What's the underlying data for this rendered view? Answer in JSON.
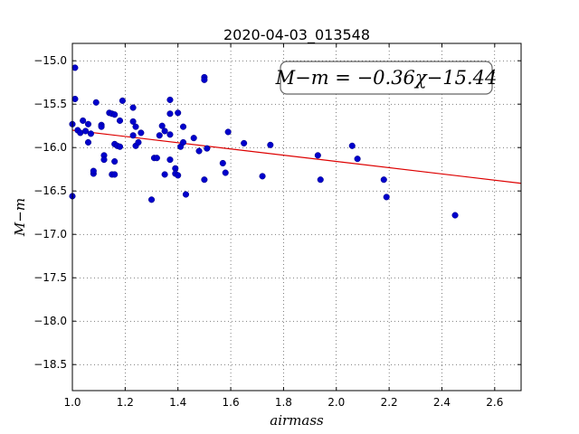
{
  "chart_data": {
    "type": "scatter",
    "title": "2020-04-03_013548",
    "xlabel": "airmass",
    "ylabel": "M−m",
    "xlim": [
      1.0,
      2.7
    ],
    "ylim": [
      -18.8,
      -14.8
    ],
    "y_inverted": true,
    "grid": true,
    "xticks": [
      1.0,
      1.2,
      1.4,
      1.6,
      1.8,
      2.0,
      2.2,
      2.4,
      2.6
    ],
    "xtick_labels": [
      "1.0",
      "1.2",
      "1.4",
      "1.6",
      "1.8",
      "2.0",
      "2.2",
      "2.4",
      "2.6"
    ],
    "yticks": [
      -15.0,
      -15.5,
      -16.0,
      -16.5,
      -17.0,
      -17.5,
      -18.0,
      -18.5
    ],
    "ytick_labels": [
      "−15.0",
      "−15.5",
      "−16.0",
      "−16.5",
      "−17.0",
      "−17.5",
      "−18.0",
      "−18.5"
    ],
    "annotation": "M−m = −0.36χ−15.44",
    "point_color": "#0000cc",
    "fit_color": "#dd0000",
    "fit": {
      "slope": -0.36,
      "intercept": -15.44
    },
    "points": [
      [
        1.01,
        -15.08
      ],
      [
        1.01,
        -15.44
      ],
      [
        1.0,
        -15.73
      ],
      [
        1.0,
        -16.56
      ],
      [
        1.02,
        -15.8
      ],
      [
        1.03,
        -15.83
      ],
      [
        1.04,
        -15.69
      ],
      [
        1.05,
        -15.81
      ],
      [
        1.06,
        -15.73
      ],
      [
        1.06,
        -15.94
      ],
      [
        1.07,
        -15.84
      ],
      [
        1.08,
        -16.3
      ],
      [
        1.08,
        -16.27
      ],
      [
        1.09,
        -15.48
      ],
      [
        1.11,
        -15.74
      ],
      [
        1.11,
        -15.76
      ],
      [
        1.12,
        -16.09
      ],
      [
        1.12,
        -16.14
      ],
      [
        1.14,
        -15.6
      ],
      [
        1.15,
        -15.61
      ],
      [
        1.15,
        -16.31
      ],
      [
        1.16,
        -16.31
      ],
      [
        1.16,
        -15.62
      ],
      [
        1.16,
        -16.16
      ],
      [
        1.16,
        -15.96
      ],
      [
        1.17,
        -15.98
      ],
      [
        1.18,
        -15.99
      ],
      [
        1.18,
        -15.69
      ],
      [
        1.19,
        -15.46
      ],
      [
        1.23,
        -15.54
      ],
      [
        1.23,
        -15.7
      ],
      [
        1.23,
        -15.86
      ],
      [
        1.24,
        -15.98
      ],
      [
        1.24,
        -15.76
      ],
      [
        1.25,
        -15.94
      ],
      [
        1.26,
        -15.83
      ],
      [
        1.3,
        -16.6
      ],
      [
        1.31,
        -16.12
      ],
      [
        1.32,
        -16.12
      ],
      [
        1.33,
        -15.86
      ],
      [
        1.34,
        -15.75
      ],
      [
        1.35,
        -16.31
      ],
      [
        1.35,
        -15.81
      ],
      [
        1.37,
        -15.45
      ],
      [
        1.37,
        -15.61
      ],
      [
        1.37,
        -15.85
      ],
      [
        1.37,
        -16.14
      ],
      [
        1.39,
        -16.24
      ],
      [
        1.39,
        -16.3
      ],
      [
        1.4,
        -16.32
      ],
      [
        1.4,
        -15.6
      ],
      [
        1.41,
        -15.99
      ],
      [
        1.42,
        -15.94
      ],
      [
        1.42,
        -15.76
      ],
      [
        1.43,
        -16.54
      ],
      [
        1.46,
        -15.89
      ],
      [
        1.48,
        -16.04
      ],
      [
        1.5,
        -16.37
      ],
      [
        1.5,
        -15.19
      ],
      [
        1.5,
        -15.22
      ],
      [
        1.51,
        -16.01
      ],
      [
        1.57,
        -16.18
      ],
      [
        1.58,
        -16.29
      ],
      [
        1.59,
        -15.82
      ],
      [
        1.65,
        -15.95
      ],
      [
        1.72,
        -16.33
      ],
      [
        1.75,
        -15.97
      ],
      [
        1.93,
        -16.09
      ],
      [
        1.94,
        -16.37
      ],
      [
        2.06,
        -15.98
      ],
      [
        2.08,
        -16.13
      ],
      [
        2.18,
        -16.37
      ],
      [
        2.19,
        -16.57
      ],
      [
        2.45,
        -16.78
      ]
    ]
  }
}
